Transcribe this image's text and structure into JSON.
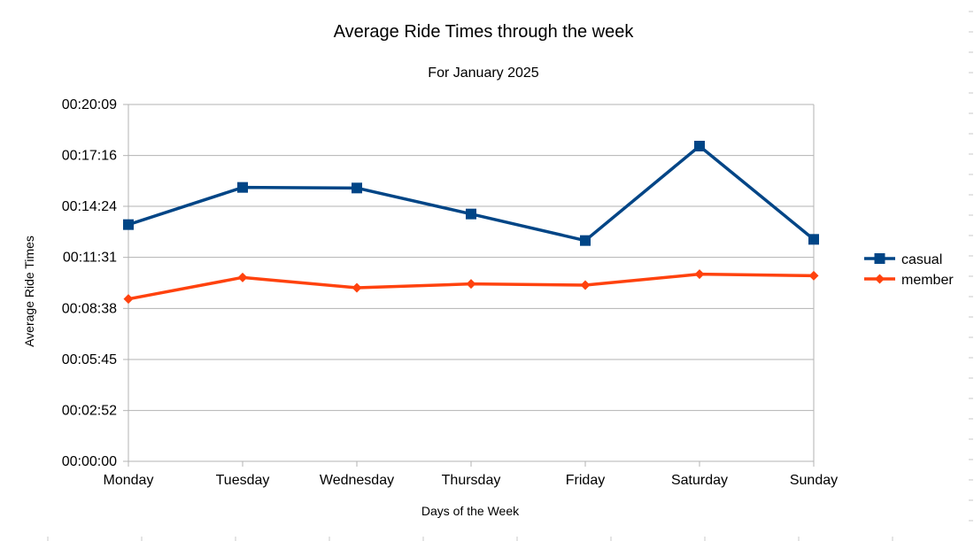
{
  "chart_data": {
    "type": "line",
    "title": "Average Ride Times through the week",
    "subtitle": "For January 2025",
    "xlabel": "Days of the Week",
    "ylabel": "Average Ride Times",
    "categories": [
      "Monday",
      "Tuesday",
      "Wednesday",
      "Thursday",
      "Friday",
      "Saturday",
      "Sunday"
    ],
    "y_ticks": [
      "00:00:00",
      "00:02:52",
      "00:05:45",
      "00:08:38",
      "00:11:31",
      "00:14:24",
      "00:17:16",
      "00:20:09"
    ],
    "y_tick_seconds": [
      0,
      172,
      345,
      518,
      691,
      864,
      1036,
      1209
    ],
    "ylim": [
      0,
      1209
    ],
    "grid": true,
    "legend_position": "right",
    "series": [
      {
        "name": "casual",
        "color": "#004586",
        "marker": "square",
        "values": [
          802,
          928,
          926,
          838,
          748,
          1068,
          752
        ]
      },
      {
        "name": "member",
        "color": "#ff420e",
        "marker": "diamond",
        "values": [
          550,
          623,
          588,
          601,
          597,
          634,
          629
        ]
      }
    ]
  }
}
